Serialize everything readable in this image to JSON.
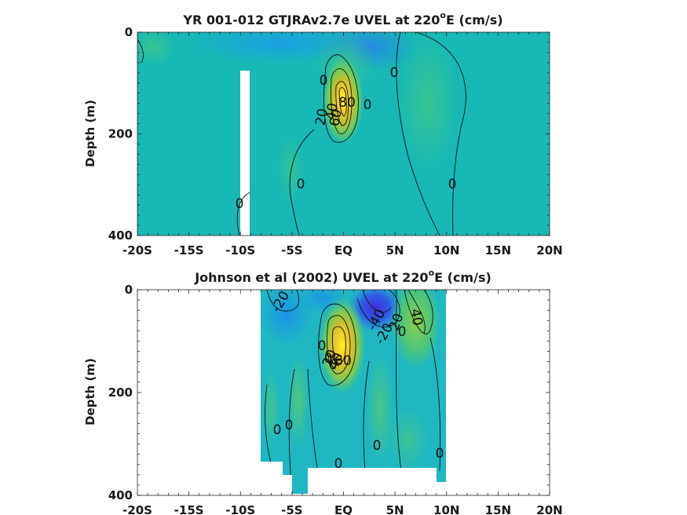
{
  "chart_data": [
    {
      "type": "heatmap",
      "title": "YR 001-012 GTJRAv2.7e UVEL at 220",
      "title_sup": "o",
      "title_suffix": "E (cm/s)",
      "ylabel": "Depth (m)",
      "xlim": [
        -20,
        20
      ],
      "ylim": [
        400,
        0
      ],
      "x_ticks": [
        "-20S",
        "-15S",
        "-10S",
        "-5S",
        "EQ",
        "5N",
        "10N",
        "15N",
        "20N"
      ],
      "y_ticks": [
        "0",
        "200",
        "400"
      ],
      "colormap": [
        "#3f30d6",
        "#2a7ff0",
        "#1ab0d8",
        "#24c0a2",
        "#6ccc63",
        "#c4c02b",
        "#f6d22a",
        "#f9f71c"
      ],
      "background_value_color": "#17b8b6",
      "jet_core": {
        "x": -0.3,
        "depth": 125,
        "max": 80
      },
      "contour_labels": [
        "0",
        "0",
        "0",
        "0",
        "0",
        "0",
        "20",
        "40",
        "60",
        "80"
      ]
    },
    {
      "type": "heatmap",
      "title": "Johnson et al (2002) UVEL at 220",
      "title_sup": "o",
      "title_suffix": "E (cm/s)",
      "ylabel": "Depth (m)",
      "xlim": [
        -20,
        20
      ],
      "ylim": [
        400,
        0
      ],
      "x_ticks": [
        "-20S",
        "-15S",
        "-10S",
        "-5S",
        "EQ",
        "5N",
        "10N",
        "15N",
        "20N"
      ],
      "y_ticks": [
        "0",
        "200",
        "400"
      ],
      "colormap": [
        "#3f30d6",
        "#2a7ff0",
        "#1ab0d8",
        "#24c0a2",
        "#6ccc63",
        "#c4c02b",
        "#f6d22a",
        "#f9f71c"
      ],
      "data_extent_x": [
        -8,
        10
      ],
      "jet_core": {
        "x": -0.2,
        "depth": 110,
        "max": 100
      },
      "contour_labels": [
        "-20",
        "-40",
        "-20",
        "0",
        "20",
        "40",
        "0",
        "0",
        "0",
        "0",
        "0",
        "0",
        "0",
        "0",
        "0",
        "20",
        "40",
        "60"
      ]
    }
  ]
}
